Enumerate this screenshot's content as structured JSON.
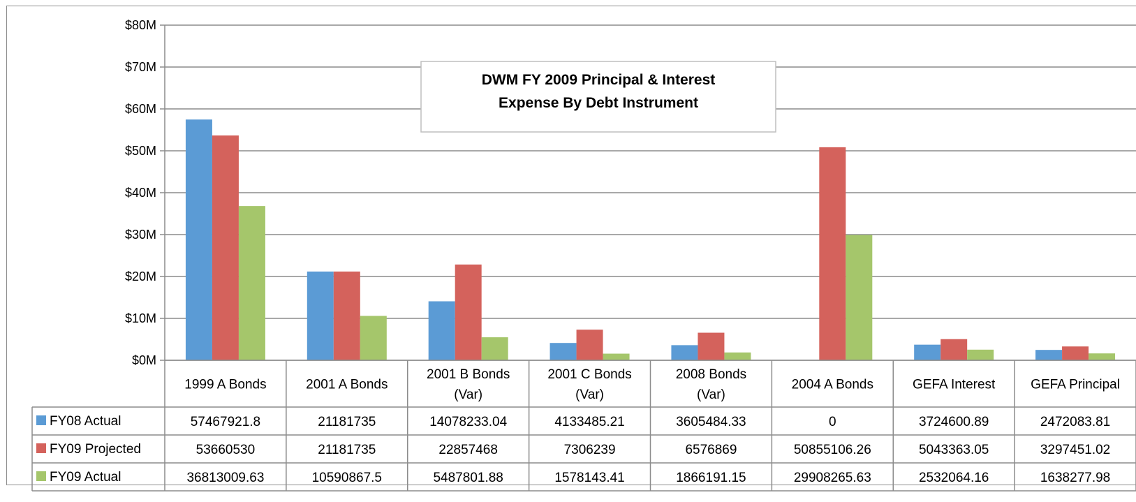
{
  "chart_data": {
    "type": "bar",
    "title": "DWM FY 2009 Principal & Interest Expense By Debt Instrument",
    "title_lines": [
      "DWM FY 2009 Principal & Interest",
      "Expense By Debt Instrument"
    ],
    "categories": [
      "1999 A Bonds",
      "2001 A Bonds",
      "2001 B Bonds (Var)",
      "2001 C Bonds (Var)",
      "2008 Bonds (Var)",
      "2004 A Bonds",
      "GEFA Interest",
      "GEFA Principal"
    ],
    "category_lines": [
      [
        "1999 A Bonds"
      ],
      [
        "2001 A Bonds"
      ],
      [
        "2001 B Bonds",
        "(Var)"
      ],
      [
        "2001 C Bonds",
        "(Var)"
      ],
      [
        "2008 Bonds",
        "(Var)"
      ],
      [
        "2004 A Bonds"
      ],
      [
        "GEFA Interest"
      ],
      [
        "GEFA Principal"
      ]
    ],
    "series": [
      {
        "name": "FY08 Actual",
        "color": "#5b9bd5",
        "values": [
          57467921.8,
          21181735,
          14078233.04,
          4133485.21,
          3605484.33,
          0,
          3724600.89,
          2472083.81
        ],
        "labels": [
          "57467921.8",
          "21181735",
          "14078233.04",
          "4133485.21",
          "3605484.33",
          "0",
          "3724600.89",
          "2472083.81"
        ]
      },
      {
        "name": "FY09 Projected",
        "color": "#d4625c",
        "values": [
          53660530,
          21181735,
          22857468,
          7306239,
          6576869,
          50855106.26,
          5043363.05,
          3297451.02
        ],
        "labels": [
          "53660530",
          "21181735",
          "22857468",
          "7306239",
          "6576869",
          "50855106.26",
          "5043363.05",
          "3297451.02"
        ]
      },
      {
        "name": "FY09 Actual",
        "color": "#a5c66b",
        "values": [
          36813009.63,
          10590867.5,
          5487801.88,
          1578143.41,
          1866191.15,
          29908265.63,
          2532064.16,
          1638277.98
        ],
        "labels": [
          "36813009.63",
          "10590867.5",
          "5487801.88",
          "1578143.41",
          "1866191.15",
          "29908265.63",
          "2532064.16",
          "1638277.98"
        ]
      }
    ],
    "ylim": [
      0,
      80000000
    ],
    "y_ticks": [
      0,
      10000000,
      20000000,
      30000000,
      40000000,
      50000000,
      60000000,
      70000000,
      80000000
    ],
    "y_tick_labels": [
      "$0M",
      "$10M",
      "$20M",
      "$30M",
      "$40M",
      "$50M",
      "$60M",
      "$70M",
      "$80M"
    ],
    "grid": true,
    "legend": "data-table"
  }
}
